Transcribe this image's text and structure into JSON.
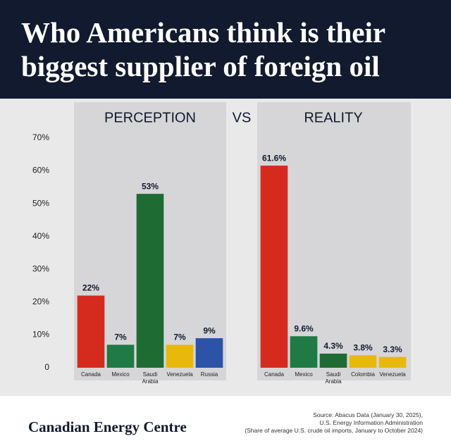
{
  "header": {
    "title": "Who Americans think is their biggest supplier of foreign oil"
  },
  "vs": "VS",
  "brand": "Canadian Energy Centre",
  "footer": {
    "source": [
      "Source: Abacus Data (January 30, 2025),",
      "U.S. Energy Information Administration",
      "(Share of average U.S. crude oil imports, January to October 2024)"
    ]
  },
  "chart_data": [
    {
      "type": "bar",
      "title": "PERCEPTION",
      "categories": [
        "Canada",
        "Mexico",
        "Saudi Arabia",
        "Venezuela",
        "Russia"
      ],
      "values": [
        22,
        7,
        53,
        7,
        9
      ],
      "value_labels": [
        "22%",
        "7%",
        "53%",
        "7%",
        "9%"
      ],
      "colors": [
        "#d52b1e",
        "#1f7a45",
        "#1e6b34",
        "#e9b80c",
        "#2b54a8"
      ],
      "ylim": [
        0,
        70
      ],
      "yticks": [
        0,
        {
          "value": 10,
          "label": "10%"
        },
        {
          "value": 20,
          "label": "20%"
        },
        {
          "value": 30,
          "label": "30%"
        },
        {
          "value": 40,
          "label": "40%"
        },
        {
          "value": 50,
          "label": "50%"
        },
        {
          "value": 60,
          "label": "60%"
        },
        {
          "value": 70,
          "label": "70%"
        }
      ]
    },
    {
      "type": "bar",
      "title": "REALITY",
      "categories": [
        "Canada",
        "Mexico",
        "Saudi Arabia",
        "Colombia",
        "Venezuela"
      ],
      "values": [
        61.6,
        9.6,
        4.3,
        3.8,
        3.3
      ],
      "value_labels": [
        "61.6%",
        "9.6%",
        "4.3%",
        "3.8%",
        "3.3%"
      ],
      "colors": [
        "#d52b1e",
        "#1f7a45",
        "#1e6b34",
        "#e9b80c",
        "#e9b80c"
      ],
      "ylim": [
        0,
        70
      ]
    }
  ]
}
